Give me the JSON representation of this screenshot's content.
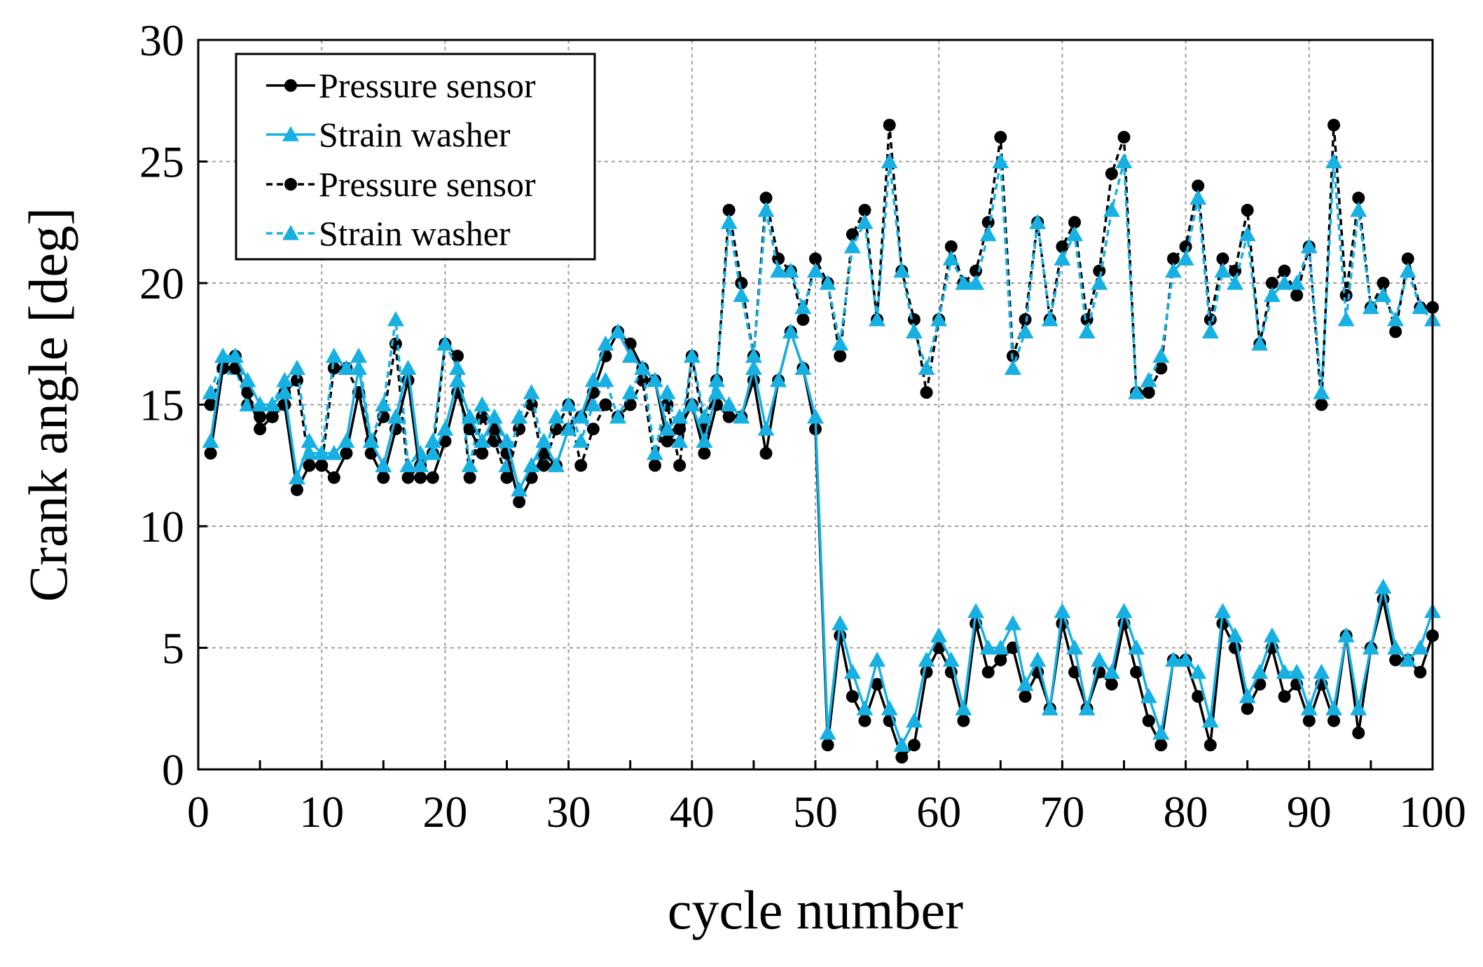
{
  "chart_data": {
    "type": "line",
    "xlabel": "cycle number",
    "ylabel": "Crank angle [deg]",
    "xlim": [
      0,
      100
    ],
    "ylim": [
      0,
      30
    ],
    "x_ticks": [
      0,
      10,
      20,
      30,
      40,
      50,
      60,
      70,
      80,
      90,
      100
    ],
    "y_ticks": [
      0,
      5,
      10,
      15,
      20,
      25,
      30
    ],
    "x_tick_labels": [
      "0",
      "10",
      "20",
      "30",
      "40",
      "50",
      "60",
      "70",
      "80",
      "90",
      "100"
    ],
    "y_tick_labels": [
      "0",
      "5",
      "10",
      "15",
      "20",
      "25",
      "30"
    ],
    "grid": true,
    "legend_position": "top-left",
    "colors": {
      "pressure": "#000000",
      "strain": "#17b0e3"
    },
    "series": [
      {
        "name": "Pressure sensor",
        "line_style": "solid",
        "marker": "circle",
        "color": "#000000",
        "x_start": 1,
        "values": [
          13,
          16.5,
          16.5,
          15.5,
          14,
          14.5,
          15,
          11.5,
          12.5,
          12.5,
          12,
          13,
          15.5,
          13,
          12,
          14,
          16,
          12,
          12,
          13.5,
          15.5,
          14,
          13,
          14,
          13,
          11,
          12,
          13,
          12.5,
          14,
          14.5,
          15.5,
          17,
          18,
          17.5,
          16.5,
          16,
          13.5,
          14,
          15,
          13,
          15,
          14.5,
          14.5,
          16,
          13,
          16,
          18,
          16.5,
          14,
          1,
          5.5,
          3,
          2,
          3.5,
          2,
          0.5,
          1,
          4,
          5,
          4,
          2,
          6,
          4,
          4.5,
          5,
          3,
          4,
          2.5,
          6,
          4,
          2.5,
          4,
          3.5,
          6,
          4,
          2,
          1,
          4.5,
          4.5,
          3,
          1,
          6,
          5,
          2.5,
          3.5,
          5,
          3,
          3.5,
          2,
          3.5,
          2,
          5.5,
          1.5,
          5,
          7,
          4.5,
          4.5,
          4,
          5.5
        ]
      },
      {
        "name": "Strain washer",
        "line_style": "solid",
        "marker": "triangle",
        "color": "#17b0e3",
        "x_start": 1,
        "values": [
          13.5,
          17,
          17,
          16,
          15,
          15,
          15.5,
          12,
          13.5,
          13,
          13,
          13.5,
          16.5,
          13.5,
          12.5,
          14.5,
          16.5,
          12.5,
          13,
          14,
          16,
          14.5,
          13.5,
          14.5,
          13.5,
          11.5,
          12.5,
          13.5,
          12.5,
          14,
          14.5,
          16,
          17.5,
          18,
          17,
          16.5,
          16,
          14,
          14.5,
          15,
          13.5,
          15.5,
          15,
          14.5,
          16.5,
          14,
          16,
          18,
          16.5,
          14.5,
          1.5,
          6,
          4,
          2.5,
          4.5,
          2.5,
          1,
          2,
          4.5,
          5.5,
          4.5,
          2.5,
          6.5,
          5,
          5,
          6,
          3.5,
          4.5,
          2.5,
          6.5,
          5,
          2.5,
          4.5,
          4,
          6.5,
          5,
          3,
          1.5,
          4.5,
          4.5,
          4,
          2,
          6.5,
          5.5,
          3,
          4,
          5.5,
          4,
          4,
          2.5,
          4,
          2.5,
          5.5,
          2.5,
          5,
          7.5,
          5,
          4.5,
          5,
          6.5
        ]
      },
      {
        "name": "Pressure sensor",
        "line_style": "dashed",
        "marker": "circle",
        "color": "#000000",
        "x_start": 1,
        "values": [
          15,
          16.5,
          17,
          15,
          14.5,
          14.5,
          15.5,
          16,
          12.5,
          12.5,
          16.5,
          16.5,
          15.5,
          13.5,
          14.5,
          17.5,
          12,
          12.5,
          13,
          17.5,
          17,
          12,
          14.5,
          13.5,
          12,
          14,
          15,
          12.5,
          14,
          15,
          12.5,
          14,
          15,
          14.5,
          15,
          16,
          12.5,
          15,
          12.5,
          17,
          14,
          16,
          23,
          20,
          17,
          23.5,
          21,
          20.5,
          18.5,
          21,
          20,
          17,
          22,
          23,
          18.5,
          26.5,
          20.5,
          18.5,
          15.5,
          18.5,
          21.5,
          20,
          20.5,
          22.5,
          26,
          17,
          18.5,
          22.5,
          18.5,
          21.5,
          22.5,
          18.5,
          20.5,
          24.5,
          26,
          15.5,
          15.5,
          16.5,
          21,
          21.5,
          24,
          18.5,
          21,
          20.5,
          23,
          17.5,
          20,
          20.5,
          19.5,
          21.5,
          15,
          26.5,
          19.5,
          23.5,
          19,
          20,
          18,
          21,
          19,
          19
        ]
      },
      {
        "name": "Strain washer",
        "line_style": "dashed",
        "marker": "triangle",
        "color": "#17b0e3",
        "x_start": 1,
        "values": [
          15.5,
          17,
          16.5,
          15,
          15,
          15,
          16,
          16.5,
          13,
          13,
          17,
          16.5,
          17,
          13.5,
          15,
          18.5,
          12.5,
          13,
          13.5,
          17.5,
          16.5,
          12.5,
          15,
          14,
          12.5,
          14.5,
          15.5,
          13,
          14.5,
          15,
          13.5,
          15,
          16,
          14.5,
          15.5,
          16.5,
          13,
          15.5,
          13.5,
          17,
          14.5,
          16,
          22.5,
          19.5,
          17,
          23,
          20.5,
          20.5,
          19,
          20.5,
          20,
          17.5,
          21.5,
          22.5,
          18.5,
          25,
          20.5,
          18,
          16.5,
          18.5,
          21,
          20,
          20,
          22,
          25,
          16.5,
          18,
          22.5,
          18.5,
          21,
          22,
          18,
          20,
          23,
          25,
          15.5,
          16,
          17,
          20.5,
          21,
          23.5,
          18,
          20.5,
          20,
          22,
          17.5,
          19.5,
          20,
          20,
          21.5,
          15.5,
          25,
          18.5,
          23,
          19,
          19.5,
          18.5,
          20.5,
          19,
          18.5
        ]
      }
    ]
  },
  "legend": {
    "items": [
      {
        "label": "Pressure sensor"
      },
      {
        "label": "Strain washer"
      },
      {
        "label": "Pressure sensor"
      },
      {
        "label": "Strain washer"
      }
    ]
  }
}
